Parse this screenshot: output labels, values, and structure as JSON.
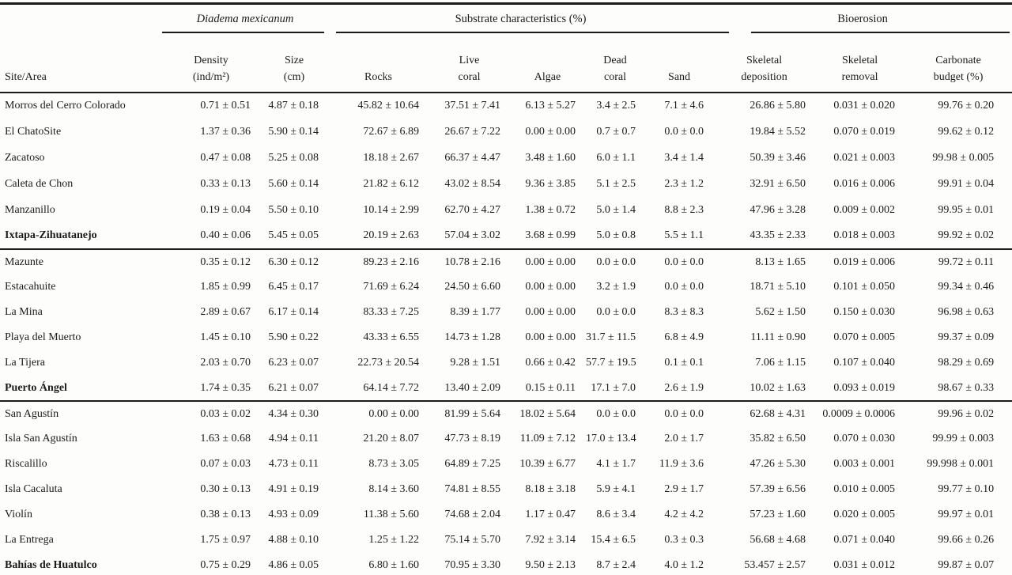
{
  "table": {
    "site_header": "Site/Area",
    "groups": [
      {
        "label": "Diadema mexicanum"
      },
      {
        "label": "Substrate characteristics (%)"
      },
      {
        "label": "Bioerosion"
      }
    ],
    "col_headers": [
      "Density\n(ind/m²)",
      "Size\n(cm)",
      "Rocks",
      "Live\ncoral",
      "Algae",
      "Dead\ncoral",
      "Sand",
      "Skeletal\ndeposition",
      "Skeletal\nremoval",
      "Carbonate\nbudget (%)"
    ],
    "sections": [
      {
        "rows": [
          {
            "site": "Morros del Cerro Colorado",
            "bold": false,
            "values": [
              "0.71 ± 0.51",
              "4.87 ± 0.18",
              "45.82 ± 10.64",
              "37.51 ± 7.41",
              "6.13 ± 5.27",
              "3.4 ± 2.5",
              "7.1 ± 4.6",
              "26.86 ± 5.80",
              "0.031 ± 0.020",
              "99.76 ± 0.20"
            ]
          },
          {
            "site": "El ChatoSite",
            "bold": false,
            "values": [
              "1.37 ± 0.36",
              "5.90 ± 0.14",
              "72.67 ± 6.89",
              "26.67 ± 7.22",
              "0.00 ± 0.00",
              "0.7 ± 0.7",
              "0.0 ± 0.0",
              "19.84 ± 5.52",
              "0.070 ± 0.019",
              "99.62 ± 0.12"
            ]
          },
          {
            "site": "Zacatoso",
            "bold": false,
            "values": [
              "0.47 ± 0.08",
              "5.25 ± 0.08",
              "18.18 ± 2.67",
              "66.37 ± 4.47",
              "3.48 ± 1.60",
              "6.0 ± 1.1",
              "3.4 ± 1.4",
              "50.39 ± 3.46",
              "0.021 ± 0.003",
              "99.98 ± 0.005"
            ]
          },
          {
            "site": "Caleta de Chon",
            "bold": false,
            "values": [
              "0.33 ± 0.13",
              "5.60 ± 0.14",
              "21.82 ± 6.12",
              "43.02 ± 8.54",
              "9.36 ± 3.85",
              "5.1 ± 2.5",
              "2.3 ± 1.2",
              "32.91 ± 6.50",
              "0.016 ± 0.006",
              "99.91 ± 0.04"
            ]
          },
          {
            "site": "Manzanillo",
            "bold": false,
            "values": [
              "0.19 ± 0.04",
              "5.50 ± 0.10",
              "10.14 ± 2.99",
              "62.70 ± 4.27",
              "1.38 ± 0.72",
              "5.0 ± 1.4",
              "8.8 ± 2.3",
              "47.96 ± 3.28",
              "0.009 ± 0.002",
              "99.95 ± 0.01"
            ]
          },
          {
            "site": "Ixtapa-Zihuatanejo",
            "bold": true,
            "values": [
              "0.40 ± 0.06",
              "5.45 ± 0.05",
              "20.19 ± 2.63",
              "57.04 ± 3.02",
              "3.68 ± 0.99",
              "5.0 ± 0.8",
              "5.5 ± 1.1",
              "43.35 ± 2.33",
              "0.018 ± 0.003",
              "99.92 ± 0.02"
            ]
          }
        ]
      },
      {
        "rows": [
          {
            "site": "Mazunte",
            "bold": false,
            "values": [
              "0.35 ± 0.12",
              "6.30 ± 0.12",
              "89.23 ± 2.16",
              "10.78 ± 2.16",
              "0.00 ± 0.00",
              "0.0 ± 0.0",
              "0.0 ± 0.0",
              "8.13 ± 1.65",
              "0.019 ± 0.006",
              "99.72 ± 0.11"
            ]
          },
          {
            "site": "Estacahuite",
            "bold": false,
            "values": [
              "1.85 ± 0.99",
              "6.45 ± 0.17",
              "71.69 ± 6.24",
              "24.50 ± 6.60",
              "0.00 ± 0.00",
              "3.2 ± 1.9",
              "0.0 ± 0.0",
              "18.71 ± 5.10",
              "0.101 ± 0.050",
              "99.34 ± 0.46"
            ]
          },
          {
            "site": "La Mina",
            "bold": false,
            "values": [
              "2.89 ± 0.67",
              "6.17 ± 0.14",
              "83.33 ± 7.25",
              "8.39 ± 1.77",
              "0.00 ± 0.00",
              "0.0 ± 0.0",
              "8.3 ± 8.3",
              "5.62 ± 1.50",
              "0.150 ± 0.030",
              "96.98 ± 0.63"
            ]
          },
          {
            "site": "Playa del Muerto",
            "bold": false,
            "values": [
              "1.45 ± 0.10",
              "5.90 ± 0.22",
              "43.33 ± 6.55",
              "14.73 ± 1.28",
              "0.00 ± 0.00",
              "31.7 ± 11.5",
              "6.8 ± 4.9",
              "11.11 ± 0.90",
              "0.070 ± 0.005",
              "99.37 ± 0.09"
            ]
          },
          {
            "site": "La Tijera",
            "bold": false,
            "values": [
              "2.03 ± 0.70",
              "6.23 ± 0.07",
              "22.73 ± 20.54",
              "9.28 ± 1.51",
              "0.66 ± 0.42",
              "57.7 ± 19.5",
              "0.1 ± 0.1",
              "7.06 ± 1.15",
              "0.107 ± 0.040",
              "98.29 ± 0.69"
            ]
          },
          {
            "site": "Puerto Ángel",
            "bold": true,
            "values": [
              "1.74 ± 0.35",
              "6.21 ± 0.07",
              "64.14 ± 7.72",
              "13.40 ± 2.09",
              "0.15 ± 0.11",
              "17.1 ± 7.0",
              "2.6 ± 1.9",
              "10.02 ± 1.63",
              "0.093 ± 0.019",
              "98.67 ± 0.33"
            ]
          }
        ]
      },
      {
        "rows": [
          {
            "site": "San Agustín",
            "bold": false,
            "values": [
              "0.03 ± 0.02",
              "4.34 ± 0.30",
              "0.00 ± 0.00",
              "81.99 ± 5.64",
              "18.02 ± 5.64",
              "0.0 ± 0.0",
              "0.0 ± 0.0",
              "62.68 ± 4.31",
              "0.0009 ± 0.0006",
              "99.96 ± 0.02"
            ]
          },
          {
            "site": "Isla San Agustín",
            "bold": false,
            "values": [
              "1.63 ± 0.68",
              "4.94 ± 0.11",
              "21.20 ± 8.07",
              "47.73 ± 8.19",
              "11.09 ± 7.12",
              "17.0 ± 13.4",
              "2.0 ± 1.7",
              "35.82 ± 6.50",
              "0.070 ± 0.030",
              "99.99 ± 0.003"
            ]
          },
          {
            "site": "Riscalillo",
            "bold": false,
            "values": [
              "0.07 ± 0.03",
              "4.73 ± 0.11",
              "8.73 ± 3.05",
              "64.89 ± 7.25",
              "10.39 ± 6.77",
              "4.1 ± 1.7",
              "11.9 ± 3.6",
              "47.26 ± 5.30",
              "0.003 ± 0.001",
              "99.998 ± 0.001"
            ]
          },
          {
            "site": "Isla Cacaluta",
            "bold": false,
            "values": [
              "0.30 ± 0.13",
              "4.91 ± 0.19",
              "8.14 ± 3.60",
              "74.81 ± 8.55",
              "8.18 ± 3.18",
              "5.9 ± 4.1",
              "2.9 ± 1.7",
              "57.39 ± 6.56",
              "0.010 ± 0.005",
              "99.77 ± 0.10"
            ]
          },
          {
            "site": "Violín",
            "bold": false,
            "values": [
              "0.38 ± 0.13",
              "4.93 ± 0.09",
              "11.38 ± 5.60",
              "74.68 ± 2.04",
              "1.17 ± 0.47",
              "8.6 ± 3.4",
              "4.2 ± 4.2",
              "57.23 ± 1.60",
              "0.020 ± 0.005",
              "99.97 ± 0.01"
            ]
          },
          {
            "site": "La Entrega",
            "bold": false,
            "values": [
              "1.75 ± 0.97",
              "4.88 ± 0.10",
              "1.25 ± 1.22",
              "75.14 ± 5.70",
              "7.92 ± 3.14",
              "15.4 ± 6.5",
              "0.3 ± 0.3",
              "56.68 ± 4.68",
              "0.071 ± 0.040",
              "99.66 ± 0.26"
            ]
          },
          {
            "site": "Bahías de Huatulco",
            "bold": true,
            "values": [
              "0.75 ± 0.29",
              "4.86 ± 0.05",
              "6.80 ± 1.60",
              "70.95 ± 3.30",
              "9.50 ± 2.13",
              "8.7 ± 2.4",
              "4.0 ± 1.2",
              "53.457 ± 2.57",
              "0.031 ± 0.012",
              "99.87 ± 0.07"
            ]
          }
        ]
      }
    ]
  }
}
